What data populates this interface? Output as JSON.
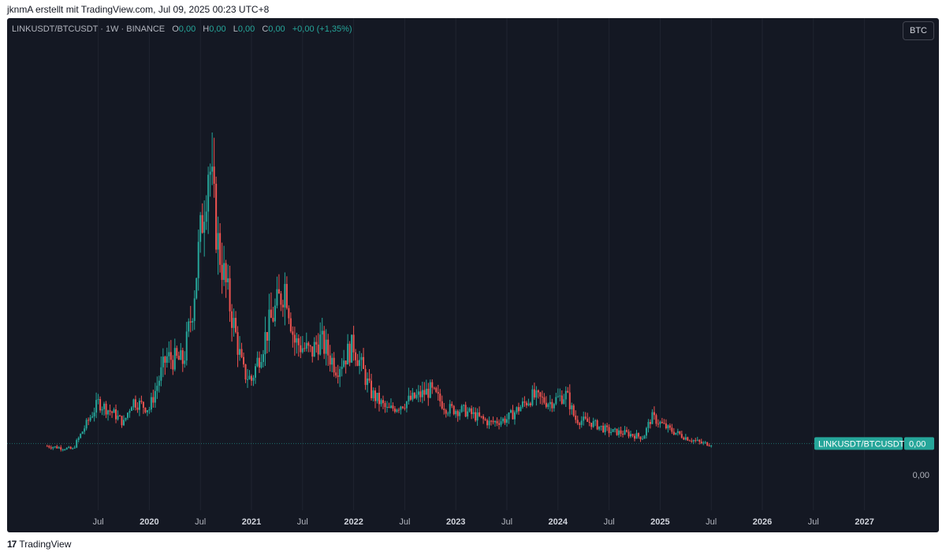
{
  "caption": "jknmA erstellt mit TradingView.com, Jul 09, 2025 00:23 UTC+8",
  "legend": {
    "symbol": "LINKUSDT/BTCUSDT · 1W · BINANCE",
    "o_label": "O",
    "o_value": "0,00",
    "h_label": "H",
    "h_value": "0,00",
    "l_label": "L",
    "l_value": "0,00",
    "c_label": "C",
    "c_value": "0,00",
    "change": "+0,00 (+1,35%)"
  },
  "symbol_badge": "BTC",
  "footer": {
    "logo_icon": "tradingview-logo-icon",
    "brand": "TradingView"
  },
  "colors": {
    "background": "#141823",
    "up": "#26a69a",
    "down": "#ef5350",
    "text": "#b2b5be",
    "grid": "#1f2430"
  },
  "chart_data": {
    "type": "candlestick",
    "title": "LINKUSDT/BTCUSDT · 1W · BINANCE",
    "interval": "1W",
    "x_ticks": [
      "Jul",
      "2020",
      "Jul",
      "2021",
      "Jul",
      "2022",
      "Jul",
      "2023",
      "Jul",
      "2024",
      "Jul",
      "2025",
      "Jul",
      "2026",
      "Jul",
      "2027"
    ],
    "y_ticks": [
      "0,00"
    ],
    "last_price_label": {
      "symbol": "LINKUSDT/BTCUSDT",
      "value": "0,00"
    },
    "price_unit": "BTC",
    "series_note": "weekly candles, values in BTC",
    "close_path": [
      [
        "2019-01",
        9.8e-05
      ],
      [
        "2019-04",
        8.2e-05
      ],
      [
        "2019-07",
        0.00031
      ],
      [
        "2019-09",
        0.00025
      ],
      [
        "2019-10",
        0.00021
      ],
      [
        "2019-11",
        0.00032
      ],
      [
        "2020-01",
        0.00028
      ],
      [
        "2020-03",
        0.00053
      ],
      [
        "2020-05",
        0.00051
      ],
      [
        "2020-06",
        0.00075
      ],
      [
        "2020-08",
        0.0015
      ],
      [
        "2020-09",
        0.0011
      ],
      [
        "2020-10",
        0.00088
      ],
      [
        "2020-12",
        0.00046
      ],
      [
        "2021-01",
        0.00042
      ],
      [
        "2021-03",
        0.00068
      ],
      [
        "2021-05",
        0.00089
      ],
      [
        "2021-06",
        0.00061
      ],
      [
        "2021-08",
        0.00055
      ],
      [
        "2021-09",
        0.00062
      ],
      [
        "2021-11",
        0.00048
      ],
      [
        "2022-01",
        0.00059
      ],
      [
        "2022-03",
        0.00036
      ],
      [
        "2022-05",
        0.00027
      ],
      [
        "2022-07",
        0.00031
      ],
      [
        "2022-10",
        0.00037
      ],
      [
        "2022-12",
        0.00028
      ],
      [
        "2023-02",
        0.00027
      ],
      [
        "2023-05",
        0.00021
      ],
      [
        "2023-07",
        0.00023
      ],
      [
        "2023-10",
        0.00034
      ],
      [
        "2023-12",
        0.00031
      ],
      [
        "2024-02",
        0.00035
      ],
      [
        "2024-03",
        0.00023
      ],
      [
        "2024-05",
        0.00021
      ],
      [
        "2024-07",
        0.00017
      ],
      [
        "2024-09",
        0.00016
      ],
      [
        "2024-11",
        0.00014
      ],
      [
        "2024-12",
        0.00024
      ],
      [
        "2025-02",
        0.00018
      ],
      [
        "2025-04",
        0.00014
      ],
      [
        "2025-06",
        0.00011
      ],
      [
        "2025-07",
        0.00011
      ]
    ],
    "ylim": [
      0,
      0.0018
    ],
    "x_range": [
      "2018-12",
      "2027-04"
    ]
  }
}
